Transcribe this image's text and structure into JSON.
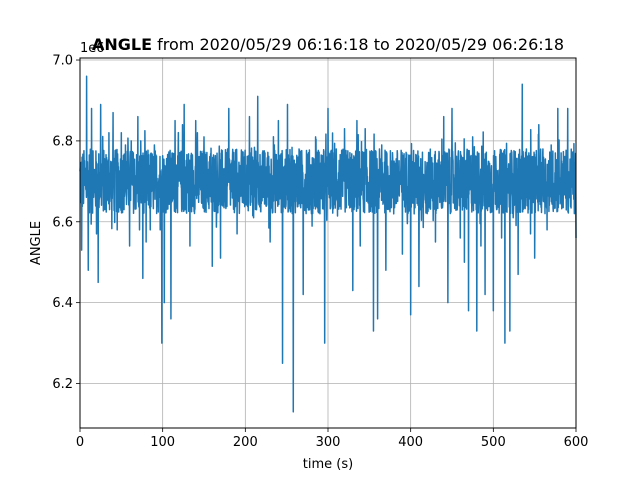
{
  "chart_data": {
    "type": "line",
    "title_bold": "ANGLE",
    "title_rest": " from 2020/05/29 06:16:18 to 2020/05/29 06:26:18",
    "xlabel": "time (s)",
    "ylabel": "ANGLE",
    "offset_text": "1e6",
    "xlim": [
      0,
      600
    ],
    "ylim": [
      6.09,
      7.005
    ],
    "xticks": [
      0,
      100,
      200,
      300,
      400,
      500,
      600
    ],
    "yticks": [
      6.2,
      6.4,
      6.6,
      6.8,
      7.0
    ],
    "ytick_labels": [
      "6.2",
      "6.4",
      "6.6",
      "6.8",
      "7.0"
    ],
    "grid": true,
    "series": [
      {
        "color": "#1f77b4",
        "baseline": 6.7,
        "band": 0.08,
        "spikes": [
          [
            2,
            6.53
          ],
          [
            8,
            6.96
          ],
          [
            10,
            6.48
          ],
          [
            14,
            6.88
          ],
          [
            20,
            6.57
          ],
          [
            22,
            6.45
          ],
          [
            25,
            6.89
          ],
          [
            30,
            6.63
          ],
          [
            35,
            6.82
          ],
          [
            40,
            6.87
          ],
          [
            45,
            6.58
          ],
          [
            50,
            6.82
          ],
          [
            55,
            6.79
          ],
          [
            60,
            6.54
          ],
          [
            62,
            6.8
          ],
          [
            70,
            6.86
          ],
          [
            72,
            6.58
          ],
          [
            76,
            6.46
          ],
          [
            80,
            6.55
          ],
          [
            85,
            6.58
          ],
          [
            90,
            6.79
          ],
          [
            97,
            6.58
          ],
          [
            99,
            6.3
          ],
          [
            102,
            6.4
          ],
          [
            110,
            6.36
          ],
          [
            115,
            6.85
          ],
          [
            124,
            6.84
          ],
          [
            126,
            6.89
          ],
          [
            133,
            6.54
          ],
          [
            140,
            6.85
          ],
          [
            150,
            6.81
          ],
          [
            160,
            6.49
          ],
          [
            170,
            6.51
          ],
          [
            180,
            6.88
          ],
          [
            190,
            6.57
          ],
          [
            192,
            6.65
          ],
          [
            205,
            6.86
          ],
          [
            210,
            6.61
          ],
          [
            215,
            6.91
          ],
          [
            220,
            6.73
          ],
          [
            225,
            6.64
          ],
          [
            230,
            6.55
          ],
          [
            235,
            6.79
          ],
          [
            240,
            6.85
          ],
          [
            245,
            6.25
          ],
          [
            251,
            6.89
          ],
          [
            258,
            6.13
          ],
          [
            265,
            6.78
          ],
          [
            270,
            6.42
          ],
          [
            280,
            6.62
          ],
          [
            285,
            6.81
          ],
          [
            296,
            6.3
          ],
          [
            300,
            6.88
          ],
          [
            310,
            6.78
          ],
          [
            320,
            6.83
          ],
          [
            330,
            6.43
          ],
          [
            335,
            6.85
          ],
          [
            339,
            6.54
          ],
          [
            345,
            6.83
          ],
          [
            350,
            6.66
          ],
          [
            355,
            6.33
          ],
          [
            360,
            6.36
          ],
          [
            365,
            6.79
          ],
          [
            370,
            6.48
          ],
          [
            380,
            6.75
          ],
          [
            390,
            6.52
          ],
          [
            400,
            6.37
          ],
          [
            405,
            6.67
          ],
          [
            410,
            6.44
          ],
          [
            420,
            6.62
          ],
          [
            425,
            6.7
          ],
          [
            430,
            6.55
          ],
          [
            440,
            6.86
          ],
          [
            445,
            6.4
          ],
          [
            450,
            6.88
          ],
          [
            460,
            6.56
          ],
          [
            465,
            6.5
          ],
          [
            470,
            6.38
          ],
          [
            475,
            6.81
          ],
          [
            480,
            6.33
          ],
          [
            485,
            6.54
          ],
          [
            490,
            6.42
          ],
          [
            495,
            6.67
          ],
          [
            500,
            6.38
          ],
          [
            505,
            6.7
          ],
          [
            510,
            6.56
          ],
          [
            514,
            6.3
          ],
          [
            520,
            6.33
          ],
          [
            524,
            6.61
          ],
          [
            530,
            6.47
          ],
          [
            535,
            6.94
          ],
          [
            540,
            6.78
          ],
          [
            545,
            6.57
          ],
          [
            550,
            6.51
          ],
          [
            555,
            6.84
          ],
          [
            560,
            6.78
          ],
          [
            565,
            6.58
          ],
          [
            570,
            6.79
          ],
          [
            575,
            6.77
          ],
          [
            578,
            6.88
          ],
          [
            583,
            6.65
          ],
          [
            590,
            6.88
          ],
          [
            595,
            6.75
          ],
          [
            598,
            6.62
          ],
          [
            600,
            6.56
          ]
        ]
      }
    ]
  }
}
